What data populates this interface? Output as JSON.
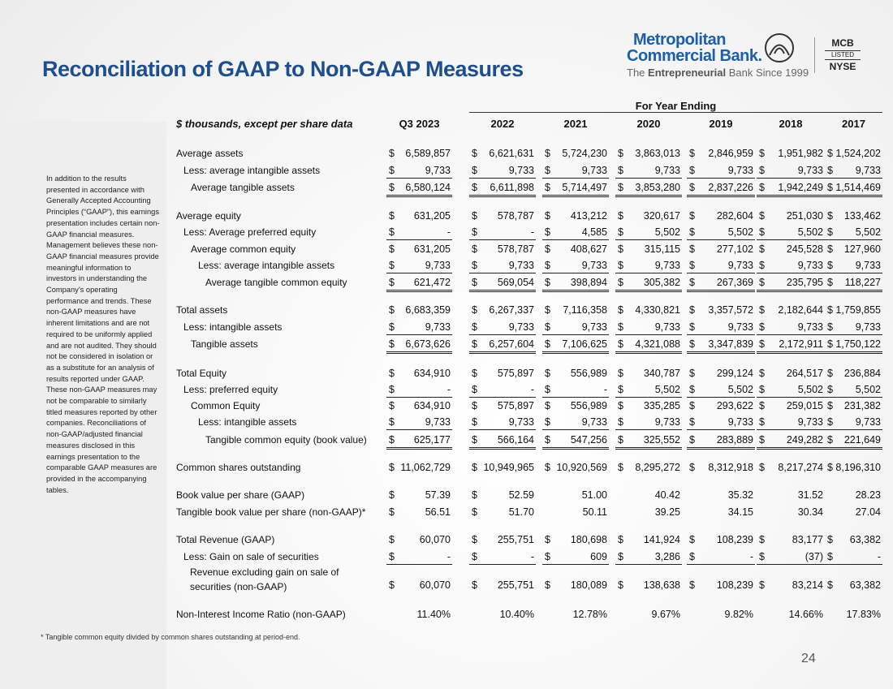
{
  "header": {
    "title": "Reconciliation of GAAP to Non-GAAP Measures",
    "logo": {
      "line1": "Metropolitan",
      "line2": "Commercial Bank.",
      "tagline": [
        "The",
        "Entrepreneurial",
        "Bank Since 1999"
      ],
      "badge": [
        "MCB",
        "LISTED",
        "NYSE"
      ]
    }
  },
  "sidebar": "In addition to the results presented in accordance with Generally Accepted Accounting Principles (“GAAP”), this earnings presentation includes certain non-GAAP financial measures. Management believes these non-GAAP financial measures provide meaningful information to investors in understanding the Company’s operating performance and trends. These non-GAAP measures have inherent limitations and are not required to be uniformly applied and are not audited. They should not be considered in isolation or as a substitute for an analysis of results reported under GAAP. These non-GAAP measures may not be comparable to similarly titled measures reported by other companies. Reconciliations of non-GAAP/adjusted financial measures disclosed in this earnings presentation to the comparable GAAP measures are provided in the accompanying tables.",
  "table": {
    "units": "$ thousands, except per share data",
    "group": "For Year Ending",
    "columns": [
      "Q3 2023",
      "2022",
      "2021",
      "2020",
      "2019",
      "2018",
      "2017"
    ],
    "rows": [
      {
        "label": "Average assets",
        "cells": [
          [
            "$",
            "6,589,857"
          ],
          [
            "$",
            "6,621,631"
          ],
          [
            "$",
            "5,724,230"
          ],
          [
            "$",
            "3,863,013"
          ],
          [
            "$",
            "2,846,959"
          ],
          [
            "$",
            "1,951,982"
          ],
          [
            "$",
            "1,524,202"
          ]
        ]
      },
      {
        "label": "Less: average intangible assets",
        "cells": [
          [
            "$",
            "9,733"
          ],
          [
            "$",
            "9,733"
          ],
          [
            "$",
            "9,733"
          ],
          [
            "$",
            "9,733"
          ],
          [
            "$",
            "9,733"
          ],
          [
            "$",
            "9,733"
          ],
          [
            "$",
            "9,733"
          ]
        ]
      },
      {
        "label": "Average tangible assets",
        "cells": [
          [
            "$",
            "6,580,124"
          ],
          [
            "$",
            "6,611,898"
          ],
          [
            "$",
            "5,714,497"
          ],
          [
            "$",
            "3,853,280"
          ],
          [
            "$",
            "2,837,226"
          ],
          [
            "$",
            "1,942,249"
          ],
          [
            "$",
            "1,514,469"
          ]
        ]
      },
      {
        "label": "Average equity",
        "cells": [
          [
            "$",
            "631,205"
          ],
          [
            "$",
            "578,787"
          ],
          [
            "$",
            "413,212"
          ],
          [
            "$",
            "320,617"
          ],
          [
            "$",
            "282,604"
          ],
          [
            "$",
            "251,030"
          ],
          [
            "$",
            "133,462"
          ]
        ]
      },
      {
        "label": "Less: Average preferred equity",
        "cells": [
          [
            "$",
            "-"
          ],
          [
            "$",
            "-"
          ],
          [
            "$",
            "4,585"
          ],
          [
            "$",
            "5,502"
          ],
          [
            "$",
            "5,502"
          ],
          [
            "$",
            "5,502"
          ],
          [
            "$",
            "5,502"
          ]
        ]
      },
      {
        "label": "Average common equity",
        "cells": [
          [
            "$",
            "631,205"
          ],
          [
            "$",
            "578,787"
          ],
          [
            "$",
            "408,627"
          ],
          [
            "$",
            "315,115"
          ],
          [
            "$",
            "277,102"
          ],
          [
            "$",
            "245,528"
          ],
          [
            "$",
            "127,960"
          ]
        ]
      },
      {
        "label": "Less: average intangible assets",
        "cells": [
          [
            "$",
            "9,733"
          ],
          [
            "$",
            "9,733"
          ],
          [
            "$",
            "9,733"
          ],
          [
            "$",
            "9,733"
          ],
          [
            "$",
            "9,733"
          ],
          [
            "$",
            "9,733"
          ],
          [
            "$",
            "9,733"
          ]
        ]
      },
      {
        "label": "Average tangible common equity",
        "cells": [
          [
            "$",
            "621,472"
          ],
          [
            "$",
            "569,054"
          ],
          [
            "$",
            "398,894"
          ],
          [
            "$",
            "305,382"
          ],
          [
            "$",
            "267,369"
          ],
          [
            "$",
            "235,795"
          ],
          [
            "$",
            "118,227"
          ]
        ]
      },
      {
        "label": "Total assets",
        "cells": [
          [
            "$",
            "6,683,359"
          ],
          [
            "$",
            "6,267,337"
          ],
          [
            "$",
            "7,116,358"
          ],
          [
            "$",
            "4,330,821"
          ],
          [
            "$",
            "3,357,572"
          ],
          [
            "$",
            "2,182,644"
          ],
          [
            "$",
            "1,759,855"
          ]
        ]
      },
      {
        "label": "Less: intangible assets",
        "cells": [
          [
            "$",
            "9,733"
          ],
          [
            "$",
            "9,733"
          ],
          [
            "$",
            "9,733"
          ],
          [
            "$",
            "9,733"
          ],
          [
            "$",
            "9,733"
          ],
          [
            "$",
            "9,733"
          ],
          [
            "$",
            "9,733"
          ]
        ]
      },
      {
        "label": "Tangible assets",
        "cells": [
          [
            "$",
            "6,673,626"
          ],
          [
            "$",
            "6,257,604"
          ],
          [
            "$",
            "7,106,625"
          ],
          [
            "$",
            "4,321,088"
          ],
          [
            "$",
            "3,347,839"
          ],
          [
            "$",
            "2,172,911"
          ],
          [
            "$",
            "1,750,122"
          ]
        ]
      },
      {
        "label": "Total Equity",
        "cells": [
          [
            "$",
            "634,910"
          ],
          [
            "$",
            "575,897"
          ],
          [
            "$",
            "556,989"
          ],
          [
            "$",
            "340,787"
          ],
          [
            "$",
            "299,124"
          ],
          [
            "$",
            "264,517"
          ],
          [
            "$",
            "236,884"
          ]
        ]
      },
      {
        "label": "Less: preferred equity",
        "cells": [
          [
            "$",
            "-"
          ],
          [
            "$",
            "-"
          ],
          [
            "$",
            "-"
          ],
          [
            "$",
            "5,502"
          ],
          [
            "$",
            "5,502"
          ],
          [
            "$",
            "5,502"
          ],
          [
            "$",
            "5,502"
          ]
        ]
      },
      {
        "label": "Common Equity",
        "cells": [
          [
            "$",
            "634,910"
          ],
          [
            "$",
            "575,897"
          ],
          [
            "$",
            "556,989"
          ],
          [
            "$",
            "335,285"
          ],
          [
            "$",
            "293,622"
          ],
          [
            "$",
            "259,015"
          ],
          [
            "$",
            "231,382"
          ]
        ]
      },
      {
        "label": "Less: intangible assets",
        "cells": [
          [
            "$",
            "9,733"
          ],
          [
            "$",
            "9,733"
          ],
          [
            "$",
            "9,733"
          ],
          [
            "$",
            "9,733"
          ],
          [
            "$",
            "9,733"
          ],
          [
            "$",
            "9,733"
          ],
          [
            "$",
            "9,733"
          ]
        ]
      },
      {
        "label": "Tangible common equity (book value)",
        "cells": [
          [
            "$",
            "625,177"
          ],
          [
            "$",
            "566,164"
          ],
          [
            "$",
            "547,256"
          ],
          [
            "$",
            "325,552"
          ],
          [
            "$",
            "283,889"
          ],
          [
            "$",
            "249,282"
          ],
          [
            "$",
            "221,649"
          ]
        ]
      },
      {
        "label": "Common shares outstanding",
        "cells": [
          [
            "$",
            "11,062,729"
          ],
          [
            "$",
            "10,949,965"
          ],
          [
            "$",
            "10,920,569"
          ],
          [
            "$",
            "8,295,272"
          ],
          [
            "$",
            "8,312,918"
          ],
          [
            "$",
            "8,217,274"
          ],
          [
            "$",
            "8,196,310"
          ]
        ]
      },
      {
        "label": "Book value per share (GAAP)",
        "cells": [
          [
            "$",
            "57.39"
          ],
          [
            "$",
            "52.59"
          ],
          "51.00",
          "40.42",
          "35.32",
          "31.52",
          "28.23"
        ]
      },
      {
        "label": "Tangible book value per share (non-GAAP)*",
        "cells": [
          [
            "$",
            "56.51"
          ],
          [
            "$",
            "51.70"
          ],
          "50.11",
          "39.25",
          "34.15",
          "30.34",
          "27.04"
        ]
      },
      {
        "label": "Total Revenue (GAAP)",
        "cells": [
          [
            "$",
            "60,070"
          ],
          [
            "$",
            "255,751"
          ],
          [
            "$",
            "180,698"
          ],
          [
            "$",
            "141,924"
          ],
          [
            "$",
            "108,239"
          ],
          [
            "$",
            "83,177"
          ],
          [
            "$",
            "63,382"
          ]
        ]
      },
      {
        "label": "Less: Gain on sale of securities",
        "cells": [
          [
            "$",
            "-"
          ],
          [
            "$",
            "-"
          ],
          [
            "$",
            "609"
          ],
          [
            "$",
            "3,286"
          ],
          [
            "$",
            "-"
          ],
          [
            "$",
            "(37)"
          ],
          [
            "$",
            "-"
          ]
        ]
      },
      {
        "label": "Revenue excluding gain on sale of securities (non-GAAP)",
        "cells": [
          [
            "$",
            "60,070"
          ],
          [
            "$",
            "255,751"
          ],
          [
            "$",
            "180,089"
          ],
          [
            "$",
            "138,638"
          ],
          [
            "$",
            "108,239"
          ],
          [
            "$",
            "83,214"
          ],
          [
            "$",
            "63,382"
          ]
        ]
      },
      {
        "label": "Non-Interest Income Ratio (non-GAAP)",
        "cells": [
          "11.40%",
          "10.40%",
          "12.78%",
          "9.67%",
          "9.82%",
          "14.66%",
          "17.83%"
        ]
      }
    ]
  },
  "footnote": "* Tangible common equity divided by common shares outstanding at period-end.",
  "page_number": "24"
}
